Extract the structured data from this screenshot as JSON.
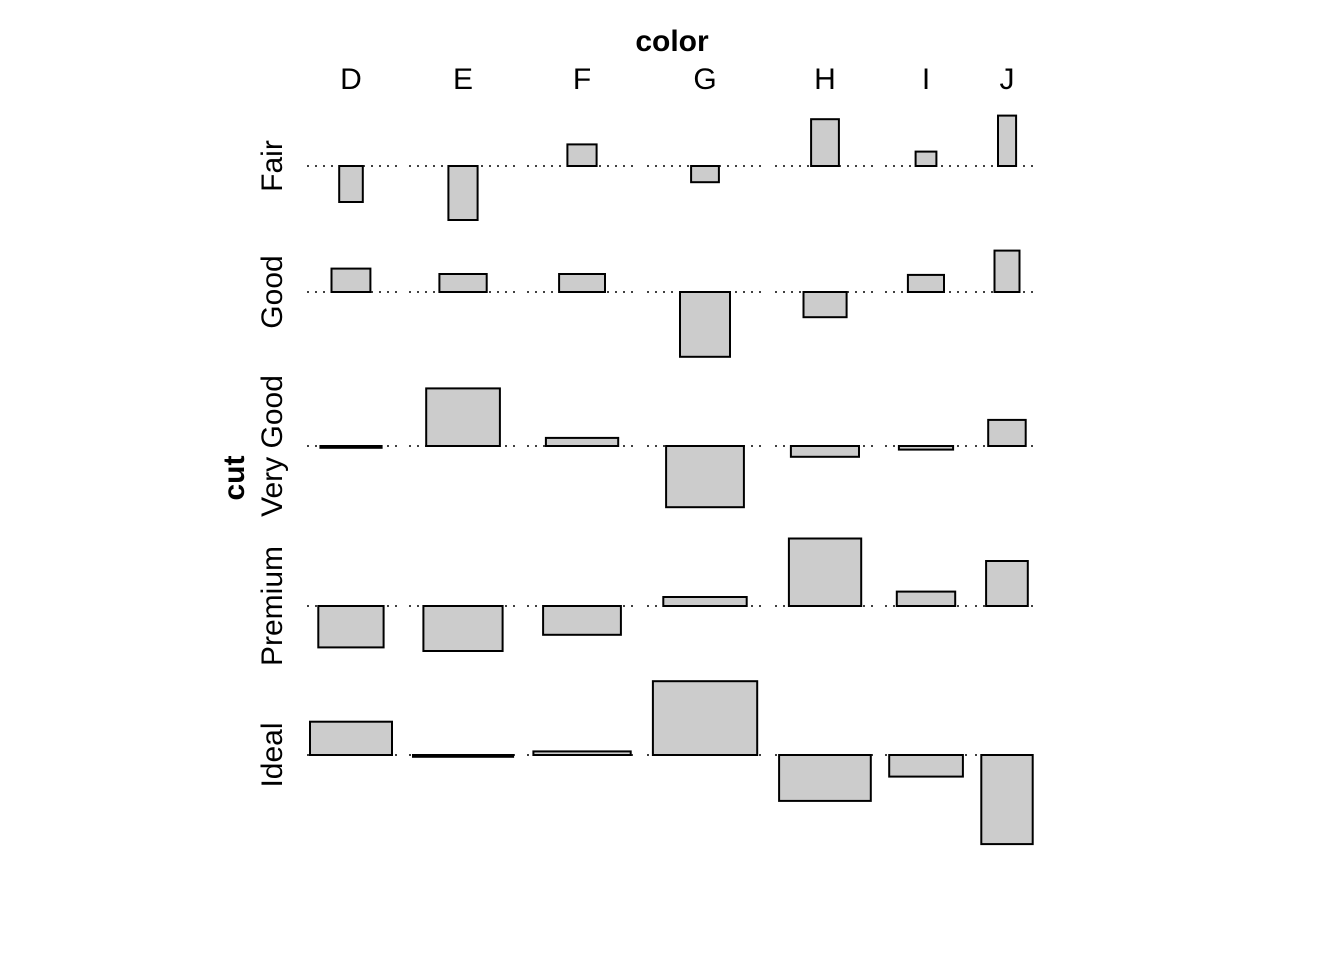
{
  "chart_data": {
    "type": "association",
    "title": "",
    "xlabel": "color",
    "ylabel": "cut",
    "columns": [
      "D",
      "E",
      "F",
      "G",
      "H",
      "I",
      "J"
    ],
    "rows": [
      "Fair",
      "Good",
      "Very Good",
      "Premium",
      "Ideal"
    ],
    "value_description": "signed residuals (bar height) with relative frequency (bar width)",
    "residuals": [
      [
        -2.0,
        -3.0,
        1.2,
        -0.9,
        2.6,
        0.8,
        2.8
      ],
      [
        1.3,
        1.0,
        1.0,
        -3.6,
        -1.4,
        0.95,
        2.3
      ],
      [
        -0.1,
        3.2,
        0.45,
        -3.4,
        -0.6,
        -0.2,
        1.45
      ],
      [
        -2.3,
        -2.5,
        -1.6,
        0.5,
        3.75,
        0.8,
        2.5
      ],
      [
        1.85,
        -0.1,
        0.2,
        4.1,
        -2.55,
        -1.2,
        -4.95
      ]
    ],
    "widths": [
      [
        0.17,
        0.21,
        0.21,
        0.2,
        0.2,
        0.15,
        0.13
      ],
      [
        0.28,
        0.34,
        0.33,
        0.36,
        0.31,
        0.26,
        0.18
      ],
      [
        0.44,
        0.53,
        0.52,
        0.56,
        0.49,
        0.39,
        0.27
      ],
      [
        0.47,
        0.57,
        0.56,
        0.6,
        0.52,
        0.42,
        0.3
      ],
      [
        0.59,
        0.72,
        0.7,
        0.75,
        0.66,
        0.53,
        0.37
      ]
    ],
    "baseline": 0,
    "fill_color": "#cccccc",
    "stroke_color": "#000000",
    "grid": false,
    "legend": "none"
  }
}
